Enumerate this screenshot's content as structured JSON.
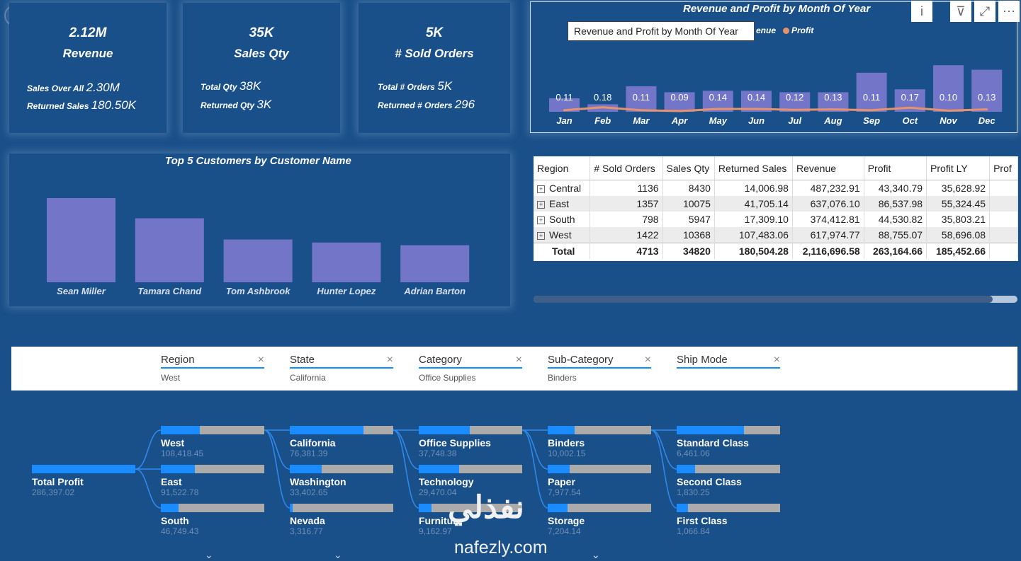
{
  "kpis": [
    {
      "value": "2.12M",
      "label": "Revenue",
      "sub1_label": "Sales Over All",
      "sub1_value": "2.30M",
      "sub2_label": "Returned Sales",
      "sub2_value": "180.50K"
    },
    {
      "value": "35K",
      "label": "Sales Qty",
      "sub1_label": "Total Qty",
      "sub1_value": "38K",
      "sub2_label": "Returned Qty",
      "sub2_value": "3K"
    },
    {
      "value": "5K",
      "label": "# Sold Orders",
      "sub1_label": "Total # Orders",
      "sub1_value": "5K",
      "sub2_label": "Returned # Orders",
      "sub2_value": "296"
    }
  ],
  "month_chart": {
    "title": "Revenue and Profit by Month Of Year",
    "tooltip": "Revenue and Profit by Month Of Year",
    "legend_revenue": "enue",
    "legend_profit": "Profit",
    "colors": {
      "revenue": "#7376c8",
      "profit": "#e8926b"
    },
    "icons": [
      "info-icon",
      "filter-icon",
      "focus-mode-icon",
      "more-options-icon"
    ],
    "icon_glyphs": [
      "i",
      "⊽",
      "⤢",
      "⋯"
    ]
  },
  "chart_data": [
    {
      "type": "bar",
      "title": "Revenue and Profit by Month Of Year",
      "categories": [
        "Jan",
        "Feb",
        "Mar",
        "Apr",
        "May",
        "Jun",
        "Jul",
        "Aug",
        "Sep",
        "Oct",
        "Nov",
        "Dec"
      ],
      "series": [
        {
          "name": "Revenue",
          "values": [
            0.9,
            0.5,
            1.7,
            1.3,
            1.4,
            1.4,
            1.3,
            1.3,
            2.6,
            1.5,
            3.1,
            2.8
          ]
        },
        {
          "name": "Profit",
          "values": [
            0.11,
            0.18,
            0.11,
            0.09,
            0.14,
            0.14,
            0.12,
            0.13,
            0.11,
            0.17,
            0.1,
            0.13
          ]
        }
      ],
      "data_labels": [
        "0.11",
        "0.18",
        "0.11",
        "0.09",
        "0.14",
        "0.14",
        "0.12",
        "0.13",
        "0.11",
        "0.17",
        "0.10",
        "0.13"
      ]
    },
    {
      "type": "bar",
      "title": "Top 5 Customers by Customer Name",
      "categories": [
        "Sean Miller",
        "Tamara Chand",
        "Tom Ashbrook",
        "Hunter Lopez",
        "Adrian Barton"
      ],
      "values": [
        25000,
        19000,
        12700,
        11800,
        11000
      ]
    }
  ],
  "table": {
    "headers": [
      "Region",
      "# Sold Orders",
      "Sales Qty",
      "Returned Sales",
      "Revenue",
      "Profit",
      "Profit LY",
      "Prof"
    ],
    "rows": [
      [
        "Central",
        "1136",
        "8430",
        "14,006.98",
        "487,232.91",
        "43,340.79",
        "35,628.92"
      ],
      [
        "East",
        "1357",
        "10075",
        "41,705.14",
        "637,076.10",
        "86,537.98",
        "55,324.45"
      ],
      [
        "South",
        "798",
        "5947",
        "17,309.10",
        "374,412.81",
        "44,530.82",
        "35,803.21"
      ],
      [
        "West",
        "1422",
        "10368",
        "107,483.06",
        "617,974.77",
        "88,755.07",
        "58,696.08"
      ]
    ],
    "total": [
      "Total",
      "4713",
      "34820",
      "180,504.28",
      "2,116,696.58",
      "263,164.66",
      "185,452.66"
    ],
    "expand_glyph": "⊞"
  },
  "filters": [
    {
      "label": "Region",
      "value": "West"
    },
    {
      "label": "State",
      "value": "California"
    },
    {
      "label": "Category",
      "value": "Office Supplies"
    },
    {
      "label": "Sub-Category",
      "value": "Binders"
    },
    {
      "label": "Ship Mode",
      "value": ""
    }
  ],
  "filter_close_glyph": "×",
  "decomp": {
    "root": {
      "name": "Total Profit",
      "value": "286,397.02",
      "fill": 1.0
    },
    "levels": [
      [
        {
          "name": "West",
          "value": "108,418.45",
          "fill": 0.38
        },
        {
          "name": "East",
          "value": "91,522.78",
          "fill": 0.33
        },
        {
          "name": "South",
          "value": "46,749.43",
          "fill": 0.17
        }
      ],
      [
        {
          "name": "California",
          "value": "76,381.39",
          "fill": 0.71
        },
        {
          "name": "Washington",
          "value": "33,402.65",
          "fill": 0.31
        },
        {
          "name": "Nevada",
          "value": "3,316.77",
          "fill": 0.03
        }
      ],
      [
        {
          "name": "Office Supplies",
          "value": "37,748.38",
          "fill": 0.49
        },
        {
          "name": "Technology",
          "value": "29,470.04",
          "fill": 0.39
        },
        {
          "name": "Furniture",
          "value": "9,162.97",
          "fill": 0.12
        }
      ],
      [
        {
          "name": "Binders",
          "value": "10,002.15",
          "fill": 0.26
        },
        {
          "name": "Paper",
          "value": "7,977.54",
          "fill": 0.21
        },
        {
          "name": "Storage",
          "value": "7,204.14",
          "fill": 0.19
        }
      ],
      [
        {
          "name": "Standard Class",
          "value": "6,461.06",
          "fill": 0.65
        },
        {
          "name": "Second Class",
          "value": "1,830.25",
          "fill": 0.18
        },
        {
          "name": "First Class",
          "value": "1,066.84",
          "fill": 0.11
        }
      ]
    ],
    "chevron": "⌄"
  },
  "watermark": {
    "arabic": "نفذلي",
    "latin": "nafezly.com"
  }
}
